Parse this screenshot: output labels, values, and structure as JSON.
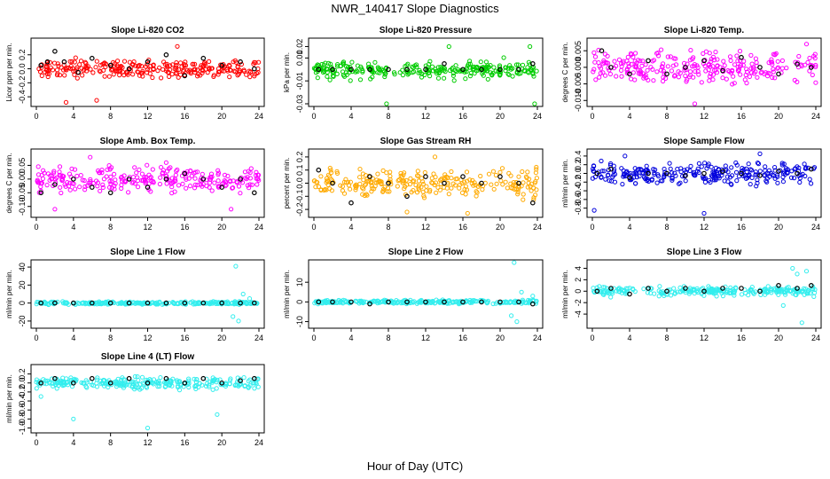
{
  "figure": {
    "title": "NWR_140417  Slope Diagnostics",
    "xlabel": "Hour of Day (UTC)"
  },
  "chart_data": [
    {
      "type": "scatter",
      "title": "Slope Li-820 CO2",
      "ylabel": "Licor ppm per min.",
      "color": "#ff0000",
      "xlim": [
        0,
        24
      ],
      "ylim": [
        -0.5,
        0.4
      ],
      "xticks": [
        "0",
        "4",
        "8",
        "12",
        "16",
        "20",
        "24"
      ],
      "yticks": [
        "-0.4",
        "-0.2",
        "0.0",
        "0.2"
      ],
      "yvals": [
        -0.4,
        -0.2,
        0,
        0.2
      ],
      "spread": 0.12,
      "outliers": [
        [
          3.2,
          -0.48
        ],
        [
          6.5,
          -0.45
        ],
        [
          15.2,
          0.32
        ]
      ],
      "black": [
        [
          0.5,
          0.05
        ],
        [
          1.2,
          0.1
        ],
        [
          2.0,
          0.25
        ],
        [
          3.0,
          0.1
        ],
        [
          4.5,
          -0.05
        ],
        [
          6.0,
          0.15
        ],
        [
          8.0,
          0.05
        ],
        [
          10.0,
          0.0
        ],
        [
          12.0,
          0.1
        ],
        [
          14.0,
          0.2
        ],
        [
          16.0,
          -0.1
        ],
        [
          18.0,
          0.15
        ],
        [
          20.0,
          0.05
        ],
        [
          22.0,
          0.1
        ],
        [
          23.5,
          0.0
        ]
      ]
    },
    {
      "type": "scatter",
      "title": "Slope Li-820 Pressure",
      "ylabel": "kPa per min.",
      "color": "#00cc00",
      "xlim": [
        0,
        24
      ],
      "ylim": [
        -0.03,
        0.025
      ],
      "xticks": [
        "0",
        "4",
        "8",
        "12",
        "16",
        "20",
        "24"
      ],
      "yticks": [
        "-0.03",
        "-0.01",
        "0.01",
        "0.02"
      ],
      "yvals": [
        -0.03,
        -0.01,
        0.01,
        0.02
      ],
      "spread": 0.007,
      "outliers": [
        [
          7.8,
          -0.03
        ],
        [
          23.7,
          -0.03
        ],
        [
          14.5,
          0.02
        ],
        [
          23.2,
          0.02
        ]
      ],
      "black": [
        [
          0.5,
          0.0
        ],
        [
          2.0,
          0.0
        ],
        [
          4.0,
          0.0
        ],
        [
          6.0,
          0.0
        ],
        [
          8.0,
          0.0
        ],
        [
          10.0,
          0.0
        ],
        [
          12.0,
          0.0
        ],
        [
          14.0,
          0.005
        ],
        [
          16.0,
          0.0
        ],
        [
          18.0,
          0.0
        ],
        [
          20.0,
          0.0
        ],
        [
          22.0,
          0.0
        ],
        [
          23.5,
          0.005
        ]
      ]
    },
    {
      "type": "scatter",
      "title": "Slope Li-820 Temp.",
      "ylabel": "degrees C per min.",
      "color": "#ff00ff",
      "xlim": [
        0,
        24
      ],
      "ylim": [
        -0.011,
        0.008
      ],
      "xticks": [
        "0",
        "4",
        "8",
        "12",
        "16",
        "20",
        "24"
      ],
      "yticks": [
        "-0.010",
        "-0.005",
        "0.000",
        "0.005"
      ],
      "yvals": [
        -0.01,
        -0.005,
        0,
        0.005
      ],
      "spread": 0.004,
      "outliers": [
        [
          11.0,
          -0.011
        ],
        [
          23.0,
          0.007
        ]
      ],
      "black": [
        [
          1.0,
          0.005
        ],
        [
          2.0,
          0.0
        ],
        [
          4.0,
          -0.002
        ],
        [
          6.0,
          0.002
        ],
        [
          8.0,
          -0.002
        ],
        [
          10.0,
          0.0
        ],
        [
          12.0,
          0.002
        ],
        [
          14.0,
          -0.001
        ],
        [
          16.0,
          0.003
        ],
        [
          18.0,
          0.0
        ],
        [
          20.0,
          -0.002
        ],
        [
          22.0,
          0.001
        ],
        [
          23.5,
          0.0
        ]
      ]
    },
    {
      "type": "scatter",
      "title": "Slope Amb. Box Temp.",
      "ylabel": "degrees C per min.",
      "color": "#ff00ff",
      "xlim": [
        0,
        24
      ],
      "ylim": [
        -0.13,
        0.1
      ],
      "xticks": [
        "0",
        "4",
        "8",
        "12",
        "16",
        "20",
        "24"
      ],
      "yticks": [
        "-0.10",
        "-0.05",
        "0.00",
        "0.05"
      ],
      "yvals": [
        -0.1,
        -0.05,
        0,
        0.05
      ],
      "spread": 0.04,
      "outliers": [
        [
          5.8,
          0.08
        ],
        [
          2.0,
          -0.11
        ],
        [
          21.0,
          -0.11
        ]
      ],
      "black": [
        [
          0.5,
          -0.05
        ],
        [
          2.0,
          -0.02
        ],
        [
          4.0,
          0.0
        ],
        [
          6.0,
          -0.03
        ],
        [
          8.0,
          -0.05
        ],
        [
          10.0,
          0.0
        ],
        [
          12.0,
          -0.03
        ],
        [
          14.0,
          0.0
        ],
        [
          16.0,
          0.02
        ],
        [
          18.0,
          0.0
        ],
        [
          20.0,
          -0.03
        ],
        [
          22.0,
          0.0
        ],
        [
          23.5,
          -0.05
        ]
      ]
    },
    {
      "type": "scatter",
      "title": "Slope Gas Stream RH",
      "ylabel": "percent per min.",
      "color": "#ffaa00",
      "xlim": [
        0,
        24
      ],
      "ylim": [
        -0.24,
        0.24
      ],
      "xticks": [
        "0",
        "4",
        "8",
        "12",
        "16",
        "20",
        "24"
      ],
      "yticks": [
        "-0.2",
        "-0.1",
        "0.0",
        "0.1",
        "0.2"
      ],
      "yvals": [
        -0.2,
        -0.1,
        0,
        0.1,
        0.2
      ],
      "spread": 0.09,
      "outliers": [
        [
          13.0,
          0.2
        ],
        [
          16.5,
          -0.23
        ],
        [
          10.0,
          -0.22
        ]
      ],
      "black": [
        [
          0.5,
          0.1
        ],
        [
          2.0,
          0.0
        ],
        [
          4.0,
          -0.15
        ],
        [
          6.0,
          0.05
        ],
        [
          8.0,
          0.0
        ],
        [
          10.0,
          -0.1
        ],
        [
          12.0,
          0.05
        ],
        [
          14.0,
          0.0
        ],
        [
          16.0,
          0.05
        ],
        [
          18.0,
          0.0
        ],
        [
          20.0,
          0.05
        ],
        [
          22.0,
          0.0
        ],
        [
          23.5,
          -0.15
        ]
      ]
    },
    {
      "type": "scatter",
      "title": "Slope Sample Flow",
      "ylabel": "ml/min per min.",
      "color": "#0000dd",
      "xlim": [
        0,
        24
      ],
      "ylim": [
        -0.95,
        0.5
      ],
      "xticks": [
        "0",
        "4",
        "8",
        "12",
        "16",
        "20",
        "24"
      ],
      "yticks": [
        "-0.8",
        "-0.6",
        "-0.4",
        "-0.2",
        "0.0",
        "0.2",
        "0.4"
      ],
      "yvals": [
        -0.8,
        -0.6,
        -0.4,
        -0.2,
        0,
        0.2,
        0.4
      ],
      "spread": 0.2,
      "outliers": [
        [
          0.2,
          -0.85
        ],
        [
          12.0,
          -0.92
        ],
        [
          3.5,
          0.4
        ],
        [
          18.0,
          0.45
        ]
      ],
      "black": [
        [
          0.5,
          0.0
        ],
        [
          2.0,
          0.1
        ],
        [
          4.0,
          -0.1
        ],
        [
          6.0,
          0.0
        ],
        [
          8.0,
          0.0
        ],
        [
          10.0,
          -0.05
        ],
        [
          12.0,
          0.0
        ],
        [
          14.0,
          0.05
        ],
        [
          16.0,
          0.0
        ],
        [
          18.0,
          -0.05
        ],
        [
          20.0,
          0.05
        ],
        [
          22.0,
          0.0
        ],
        [
          23.5,
          0.1
        ]
      ]
    },
    {
      "type": "scatter",
      "title": "Slope Line 1 Flow",
      "ylabel": "ml/min per min.",
      "color": "#33eeee",
      "xlim": [
        0,
        24
      ],
      "ylim": [
        -25,
        45
      ],
      "xticks": [
        "0",
        "4",
        "8",
        "12",
        "16",
        "20",
        "24"
      ],
      "yticks": [
        "-20",
        "0",
        "20",
        "40"
      ],
      "yvals": [
        -20,
        0,
        20,
        40
      ],
      "spread": 1.5,
      "outliers": [
        [
          21.5,
          41
        ],
        [
          21.8,
          -20
        ],
        [
          22.3,
          10
        ],
        [
          21.2,
          -15
        ],
        [
          23.0,
          5
        ]
      ],
      "black": [
        [
          0.5,
          0
        ],
        [
          2,
          0
        ],
        [
          4,
          0
        ],
        [
          6,
          0
        ],
        [
          8,
          0
        ],
        [
          10,
          0
        ],
        [
          12,
          0
        ],
        [
          14,
          0
        ],
        [
          16,
          0
        ],
        [
          18,
          0
        ],
        [
          20,
          0
        ],
        [
          22,
          0
        ],
        [
          23.5,
          0
        ]
      ]
    },
    {
      "type": "scatter",
      "title": "Slope Line 2 Flow",
      "ylabel": "ml/min per min.",
      "color": "#33eeee",
      "xlim": [
        0,
        24
      ],
      "ylim": [
        -12,
        20
      ],
      "xticks": [
        "0",
        "4",
        "8",
        "12",
        "16",
        "20",
        "24"
      ],
      "yticks": [
        "-10",
        "0",
        "10"
      ],
      "yvals": [
        -10,
        0,
        10
      ],
      "spread": 0.8,
      "outliers": [
        [
          21.5,
          20
        ],
        [
          21.8,
          -10
        ],
        [
          22.3,
          5
        ],
        [
          21.2,
          -7
        ],
        [
          23.5,
          3
        ]
      ],
      "black": [
        [
          0.5,
          0
        ],
        [
          2,
          0
        ],
        [
          4,
          0
        ],
        [
          6,
          -1
        ],
        [
          8,
          0
        ],
        [
          10,
          0
        ],
        [
          12,
          0
        ],
        [
          14,
          0
        ],
        [
          16,
          0
        ],
        [
          18,
          0
        ],
        [
          20,
          0
        ],
        [
          22,
          0
        ],
        [
          23.5,
          -1
        ]
      ]
    },
    {
      "type": "scatter",
      "title": "Slope Line 3 Flow",
      "ylabel": "ml/min per min.",
      "color": "#33eeee",
      "xlim": [
        0,
        24
      ],
      "ylim": [
        -6,
        5
      ],
      "xticks": [
        "0",
        "4",
        "8",
        "12",
        "16",
        "20",
        "24"
      ],
      "yticks": [
        "-4",
        "-2",
        "0",
        "2",
        "4"
      ],
      "yvals": [
        -4,
        -2,
        0,
        2,
        4
      ],
      "spread": 0.7,
      "outliers": [
        [
          21.5,
          4
        ],
        [
          22.5,
          -5.5
        ],
        [
          23.0,
          3.5
        ],
        [
          20.5,
          -2.5
        ],
        [
          22.0,
          3
        ]
      ],
      "black": [
        [
          0.5,
          0.0
        ],
        [
          2,
          0.5
        ],
        [
          4,
          -0.5
        ],
        [
          6,
          0.5
        ],
        [
          8,
          0.0
        ],
        [
          10,
          0.5
        ],
        [
          12,
          0.0
        ],
        [
          14,
          0.5
        ],
        [
          16,
          0.5
        ],
        [
          18,
          0.0
        ],
        [
          20,
          1.0
        ],
        [
          22,
          0.5
        ],
        [
          23.5,
          1.0
        ]
      ]
    },
    {
      "type": "scatter",
      "title": "Slope Line 4 (LT) Flow",
      "ylabel": "ml/min per min.",
      "color": "#33eeee",
      "xlim": [
        0,
        24
      ],
      "ylim": [
        -1.05,
        0.35
      ],
      "xticks": [
        "0",
        "4",
        "8",
        "12",
        "16",
        "20",
        "24"
      ],
      "yticks": [
        "-1.0",
        "-0.8",
        "-0.6",
        "-0.4",
        "-0.2",
        "0.0",
        "0.2"
      ],
      "yvals": [
        -1,
        -0.8,
        -0.6,
        -0.4,
        -0.2,
        0,
        0.2
      ],
      "spread": 0.12,
      "outliers": [
        [
          4.0,
          -0.8
        ],
        [
          12.0,
          -1.0
        ],
        [
          19.5,
          -0.7
        ],
        [
          0.5,
          -0.3
        ]
      ],
      "black": [
        [
          0.5,
          0.0
        ],
        [
          2,
          0.1
        ],
        [
          4,
          0.0
        ],
        [
          6,
          0.1
        ],
        [
          8,
          0.0
        ],
        [
          10,
          0.1
        ],
        [
          12,
          0.0
        ],
        [
          14,
          0.1
        ],
        [
          16,
          0.0
        ],
        [
          18,
          0.1
        ],
        [
          20,
          0.0
        ],
        [
          22,
          0.05
        ],
        [
          23.5,
          0.1
        ]
      ]
    }
  ]
}
